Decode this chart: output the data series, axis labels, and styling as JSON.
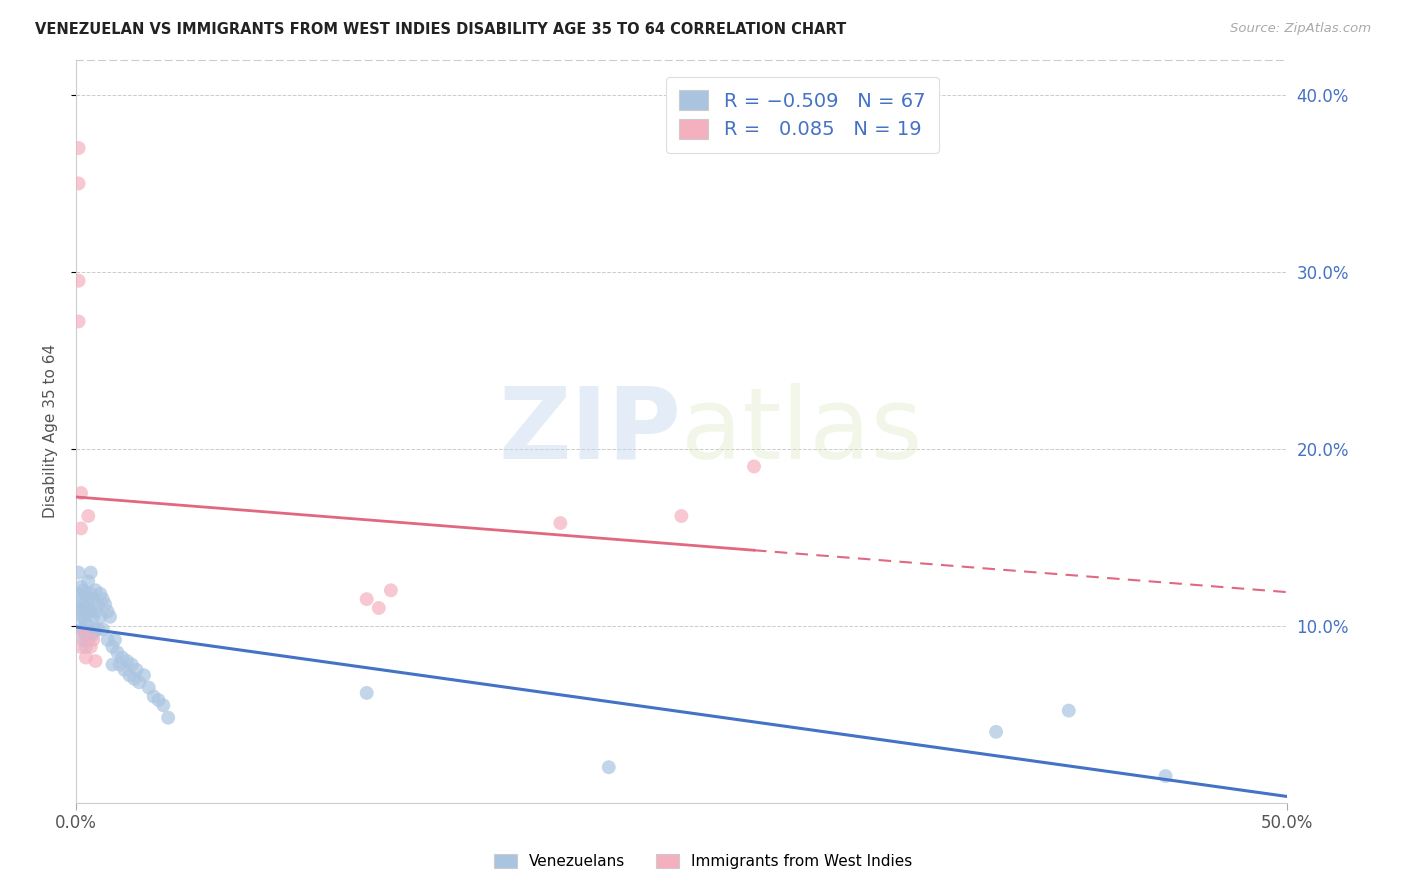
{
  "title": "VENEZUELAN VS IMMIGRANTS FROM WEST INDIES DISABILITY AGE 35 TO 64 CORRELATION CHART",
  "source": "Source: ZipAtlas.com",
  "ylabel": "Disability Age 35 to 64",
  "xlim": [
    0.0,
    0.5
  ],
  "ylim": [
    0.0,
    0.42
  ],
  "xticks": [
    0.0,
    0.5
  ],
  "xticklabels": [
    "0.0%",
    "50.0%"
  ],
  "yticks_right": [
    0.1,
    0.2,
    0.3,
    0.4
  ],
  "yticklabels_right": [
    "10.0%",
    "20.0%",
    "30.0%",
    "40.0%"
  ],
  "blue_R": -0.509,
  "blue_N": 67,
  "pink_R": 0.085,
  "pink_N": 19,
  "blue_color": "#aac4e0",
  "pink_color": "#f5b0c0",
  "blue_line_color": "#4472c4",
  "pink_line_color": "#e06880",
  "legend_label_blue": "Venezuelans",
  "legend_label_pink": "Immigrants from West Indies",
  "watermark_zip": "ZIP",
  "watermark_atlas": "atlas",
  "blue_x": [
    0.001,
    0.001,
    0.001,
    0.002,
    0.002,
    0.002,
    0.002,
    0.002,
    0.003,
    0.003,
    0.003,
    0.003,
    0.003,
    0.004,
    0.004,
    0.004,
    0.004,
    0.004,
    0.005,
    0.005,
    0.005,
    0.005,
    0.005,
    0.006,
    0.006,
    0.006,
    0.006,
    0.007,
    0.007,
    0.007,
    0.008,
    0.008,
    0.008,
    0.009,
    0.009,
    0.01,
    0.01,
    0.011,
    0.011,
    0.012,
    0.013,
    0.013,
    0.014,
    0.015,
    0.015,
    0.016,
    0.017,
    0.018,
    0.019,
    0.02,
    0.021,
    0.022,
    0.023,
    0.024,
    0.025,
    0.026,
    0.028,
    0.03,
    0.032,
    0.034,
    0.036,
    0.038,
    0.12,
    0.22,
    0.38,
    0.41,
    0.45
  ],
  "blue_y": [
    0.13,
    0.118,
    0.11,
    0.122,
    0.115,
    0.108,
    0.105,
    0.098,
    0.12,
    0.112,
    0.105,
    0.098,
    0.092,
    0.118,
    0.11,
    0.102,
    0.095,
    0.088,
    0.125,
    0.115,
    0.108,
    0.1,
    0.092,
    0.13,
    0.118,
    0.108,
    0.095,
    0.115,
    0.105,
    0.095,
    0.12,
    0.108,
    0.098,
    0.112,
    0.098,
    0.118,
    0.105,
    0.115,
    0.098,
    0.112,
    0.108,
    0.092,
    0.105,
    0.088,
    0.078,
    0.092,
    0.085,
    0.078,
    0.082,
    0.075,
    0.08,
    0.072,
    0.078,
    0.07,
    0.075,
    0.068,
    0.072,
    0.065,
    0.06,
    0.058,
    0.055,
    0.048,
    0.062,
    0.02,
    0.04,
    0.052,
    0.015
  ],
  "pink_x": [
    0.001,
    0.001,
    0.001,
    0.001,
    0.002,
    0.002,
    0.002,
    0.003,
    0.004,
    0.005,
    0.006,
    0.007,
    0.008,
    0.12,
    0.125,
    0.13,
    0.2,
    0.25,
    0.28
  ],
  "pink_y": [
    0.37,
    0.35,
    0.295,
    0.272,
    0.175,
    0.155,
    0.088,
    0.095,
    0.082,
    0.162,
    0.088,
    0.092,
    0.08,
    0.115,
    0.11,
    0.12,
    0.158,
    0.162,
    0.19
  ]
}
